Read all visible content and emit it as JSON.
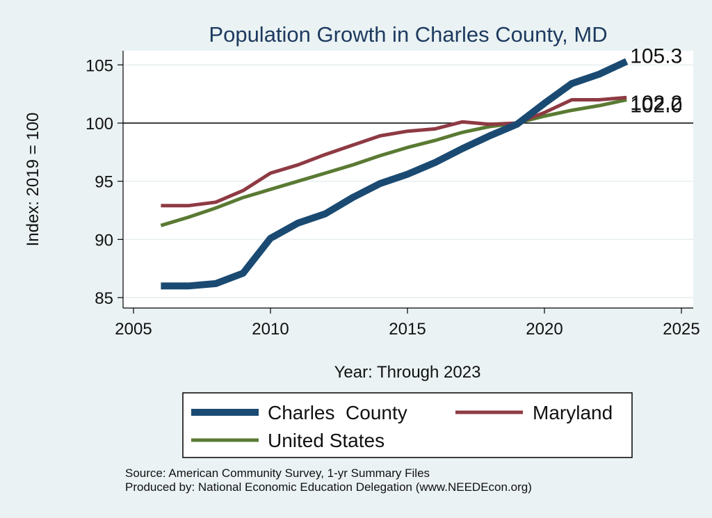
{
  "chart_data": {
    "type": "line",
    "title": "Population Growth in Charles County, MD",
    "xlabel": "Year: Through 2023",
    "ylabel": "Index: 2019 = 100",
    "xlim": [
      2005,
      2025
    ],
    "ylim": [
      84.3,
      106.4
    ],
    "xticks": [
      2005,
      2010,
      2015,
      2020,
      2025
    ],
    "yticks": [
      85,
      90,
      95,
      100,
      105
    ],
    "reference_line": 100,
    "grid": true,
    "x": [
      2006,
      2007,
      2008,
      2009,
      2010,
      2011,
      2012,
      2013,
      2014,
      2015,
      2016,
      2017,
      2018,
      2019,
      2020,
      2021,
      2022,
      2023
    ],
    "series": [
      {
        "name": "Charles  County",
        "color": "#1a4a72",
        "values": [
          86.0,
          86.0,
          86.2,
          87.1,
          90.1,
          91.4,
          92.2,
          93.6,
          94.8,
          95.6,
          96.6,
          97.8,
          98.9,
          99.9,
          101.7,
          103.4,
          104.2,
          105.3
        ],
        "end_label": "105.3"
      },
      {
        "name": "Maryland",
        "color": "#8e3a43",
        "values": [
          92.9,
          92.9,
          93.2,
          94.2,
          95.7,
          96.4,
          97.3,
          98.1,
          98.9,
          99.3,
          99.5,
          100.1,
          99.9,
          100.0,
          100.9,
          102.0,
          102.0,
          102.2
        ],
        "end_label": "102.2"
      },
      {
        "name": "United States",
        "color": "#5a7a33",
        "values": [
          91.2,
          91.9,
          92.7,
          93.6,
          94.3,
          95.0,
          95.7,
          96.4,
          97.2,
          97.9,
          98.5,
          99.2,
          99.7,
          100.0,
          100.6,
          101.1,
          101.5,
          102.0
        ],
        "end_label": "102.0"
      }
    ],
    "legend_position": "bottom",
    "notes": [
      "Source: American Community Survey, 1-yr Summary Files",
      "Produced by: National Economic Education Delegation (www.NEEDEcon.org)"
    ]
  }
}
